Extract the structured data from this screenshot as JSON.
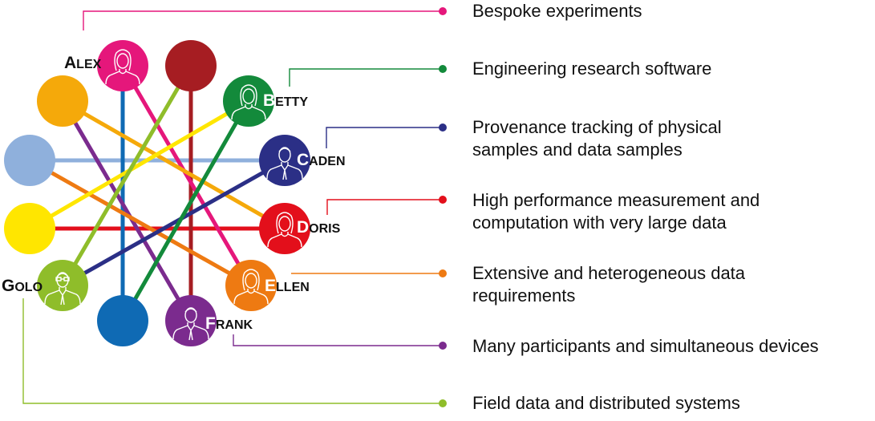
{
  "people": [
    {
      "id": "alex",
      "initial": "A",
      "rest": "LEX",
      "color": "#e5177b",
      "icon": "woman-avatar-icon"
    },
    {
      "id": "betty",
      "initial": "B",
      "rest": "ETTY",
      "color": "#138a3b",
      "icon": "woman-avatar-icon"
    },
    {
      "id": "caden",
      "initial": "C",
      "rest": "ADEN",
      "color": "#2b2f86",
      "icon": "man-avatar-icon"
    },
    {
      "id": "doris",
      "initial": "D",
      "rest": "ORIS",
      "color": "#e30f1b",
      "icon": "woman-avatar-icon"
    },
    {
      "id": "ellen",
      "initial": "E",
      "rest": "LLEN",
      "color": "#ee7a12",
      "icon": "woman-avatar-icon"
    },
    {
      "id": "frank",
      "initial": "F",
      "rest": "RANK",
      "color": "#7b2b8e",
      "icon": "man-avatar-icon"
    },
    {
      "id": "golo",
      "initial": "G",
      "rest": "OLO",
      "color": "#8fbd2a",
      "icon": "man-glasses-avatar-icon"
    }
  ],
  "features": [
    {
      "person": "alex",
      "color": "#e5177b",
      "lines": [
        "Bespoke experiments"
      ]
    },
    {
      "person": "betty",
      "color": "#138a3b",
      "lines": [
        "Engineering research software"
      ]
    },
    {
      "person": "caden",
      "color": "#2b2f86",
      "lines": [
        "Provenance tracking of physical",
        "samples and data samples"
      ]
    },
    {
      "person": "doris",
      "color": "#e30f1b",
      "lines": [
        "High performance measurement and",
        "computation with very large data"
      ]
    },
    {
      "person": "ellen",
      "color": "#ee7a12",
      "lines": [
        "Extensive and heterogeneous data",
        "requirements"
      ]
    },
    {
      "person": "frank",
      "color": "#7b2b8e",
      "lines": [
        "Many participants and simultaneous devices"
      ]
    },
    {
      "person": "golo",
      "color": "#8fbd2a",
      "lines": [
        "Field data and distributed systems"
      ]
    }
  ],
  "extra_nodes": [
    {
      "id": "darkred",
      "color": "#a61d22"
    },
    {
      "id": "amber",
      "color": "#f5a90a"
    },
    {
      "id": "skyblue",
      "color": "#8fb0dc"
    },
    {
      "id": "yellow",
      "color": "#ffe600"
    },
    {
      "id": "blue",
      "color": "#0f6ab4"
    }
  ]
}
